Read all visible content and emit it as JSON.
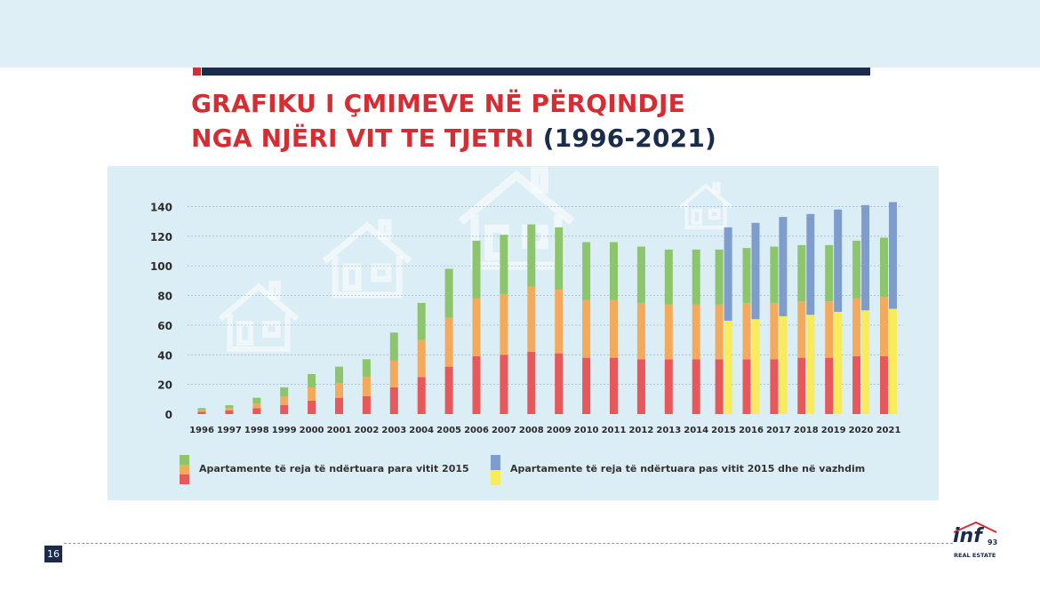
{
  "title": {
    "line1": "GRAFIKU I ÇMIMEVE NË PËRQINDJE",
    "line2": "NGA NJËRI VIT TE TJETRI",
    "range": "(1996-2021)"
  },
  "page_number": "16",
  "logo": {
    "main": "inf",
    "number": "93",
    "sub": "REAL ESTATE"
  },
  "colors": {
    "title_red": "#d62d33",
    "navy": "#1b2b4b",
    "panel": "#dbeef6",
    "red": "#e8575a",
    "orange": "#f4aa5b",
    "green": "#8cc56c",
    "blue": "#7e9ccc",
    "yellow": "#f8ec5a"
  },
  "chart_data": {
    "type": "bar",
    "stacked": true,
    "categories": [
      "1996",
      "1997",
      "1998",
      "1999",
      "2000",
      "2001",
      "2002",
      "2003",
      "2004",
      "2005",
      "2006",
      "2007",
      "2008",
      "2009",
      "2010",
      "2011",
      "2012",
      "2013",
      "2014",
      "2015",
      "2016",
      "2017",
      "2018",
      "2019",
      "2020",
      "2021"
    ],
    "ylim": [
      0,
      140
    ],
    "yticks": [
      0,
      20,
      40,
      60,
      80,
      100,
      120,
      140
    ],
    "grid": true,
    "legend": [
      {
        "label": "Apartamente të reja të ndërtuara para vitit 2015",
        "colors": [
          "#8cc56c",
          "#f4aa5b",
          "#e8575a"
        ]
      },
      {
        "label": "Apartamente të reja të ndërtuara pas vitit 2015 dhe në vazhdim",
        "colors": [
          "#7e9ccc",
          "#f8ec5a"
        ]
      }
    ],
    "groups": [
      {
        "name": "Apartamente të reja të ndërtuara para vitit 2015",
        "stack": [
          {
            "color": "#e8575a",
            "values": [
              1.5,
              2.5,
              4,
              6,
              9,
              11,
              12,
              18,
              25,
              32,
              39,
              40,
              42,
              41,
              38,
              38,
              37,
              37,
              37,
              37,
              37,
              37,
              38,
              38,
              39,
              39
            ]
          },
          {
            "color": "#f4aa5b",
            "values": [
              1,
              1.5,
              3,
              6,
              9,
              10,
              13,
              18,
              25,
              33,
              39,
              41,
              44,
              43,
              39,
              39,
              38,
              37,
              37,
              37,
              38,
              38,
              38,
              38,
              39,
              40
            ]
          },
          {
            "color": "#8cc56c",
            "values": [
              1.5,
              2,
              4,
              6,
              9,
              11,
              12,
              19,
              25,
              33,
              39,
              40,
              42,
              42,
              39,
              39,
              38,
              37,
              37,
              37,
              37,
              38,
              38,
              38,
              39,
              40
            ]
          }
        ]
      },
      {
        "name": "Apartamente të reja të ndërtuara pas vitit 2015 dhe në vazhdim",
        "start_index": 19,
        "stack": [
          {
            "color": "#f8ec5a",
            "values": [
              63,
              64,
              66,
              67,
              69,
              70,
              71
            ]
          },
          {
            "color": "#7e9ccc",
            "values": [
              63,
              65,
              67,
              68,
              69,
              71,
              72
            ]
          }
        ]
      }
    ]
  }
}
